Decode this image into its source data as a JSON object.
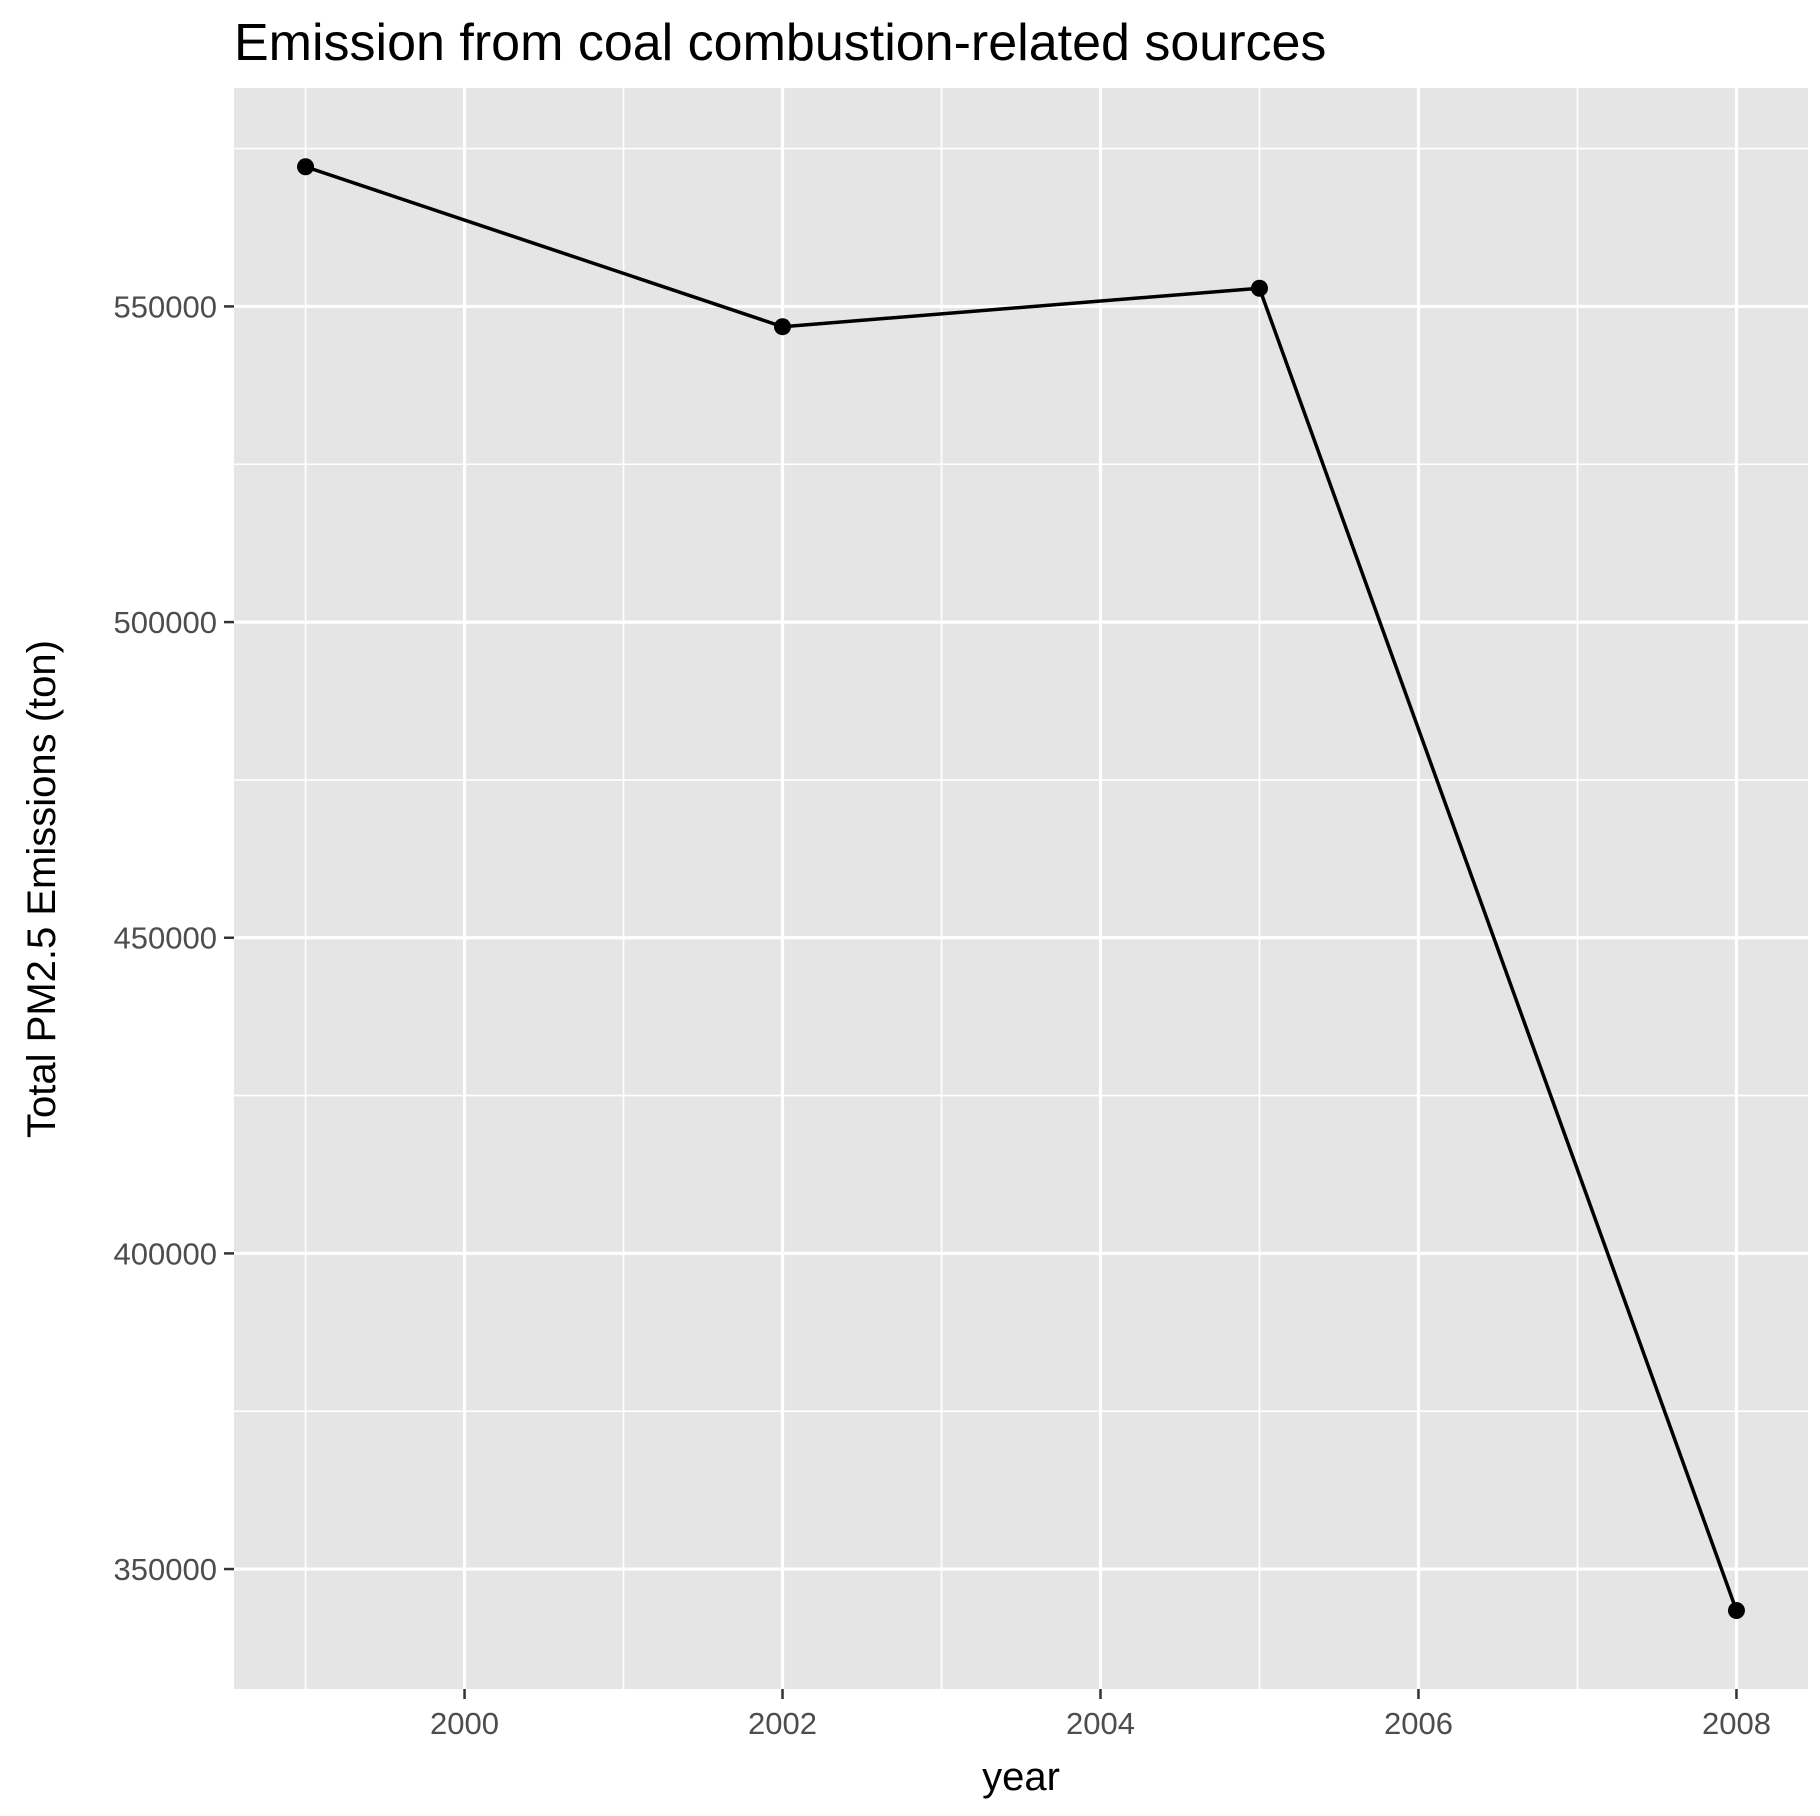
{
  "chart_data": {
    "type": "line",
    "title": "Emission from coal combustion-related sources",
    "xlabel": "year",
    "ylabel": "Total PM2.5 Emissions (ton)",
    "x": [
      1999,
      2002,
      2005,
      2008
    ],
    "series": [
      {
        "values": [
          572126,
          546789,
          552881,
          343432
        ]
      }
    ],
    "xlim": [
      1998.55,
      2008.45
    ],
    "ylim": [
      331000,
      584600
    ],
    "xticks": [
      2000,
      2002,
      2004,
      2006,
      2008
    ],
    "xtick_labels": [
      "2000",
      "2002",
      "2004",
      "2006",
      "2008"
    ],
    "yticks": [
      350000,
      400000,
      450000,
      500000,
      550000
    ],
    "ytick_labels": [
      "350000",
      "400000",
      "450000",
      "500000",
      "550000"
    ],
    "grid": true,
    "legend": "none",
    "colors": {
      "panel_background": "#e5e5e5",
      "grid": "#ffffff",
      "line": "#000000",
      "points": "#000000",
      "tick_text": "#4d4d4d",
      "tick_marks": "#333333"
    }
  }
}
